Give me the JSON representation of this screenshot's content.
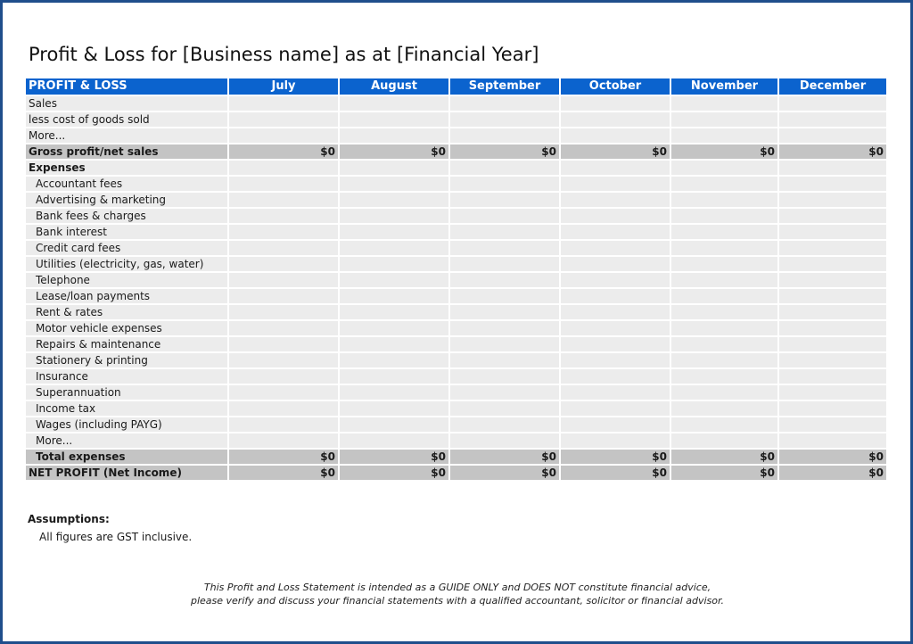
{
  "title": "Profit & Loss for [Business name] as at [Financial Year]",
  "table": {
    "header_label": "PROFIT & LOSS",
    "months": [
      "July",
      "August",
      "September",
      "October",
      "November",
      "December"
    ],
    "income_rows": [
      "Sales",
      "less cost of goods sold",
      "More..."
    ],
    "gross_profit": {
      "label": "Gross profit/net sales",
      "values": [
        "$0",
        "$0",
        "$0",
        "$0",
        "$0",
        "$0"
      ]
    },
    "expenses_label": "Expenses",
    "expense_rows": [
      "Accountant fees",
      "Advertising & marketing",
      "Bank fees & charges",
      "Bank interest",
      "Credit card fees",
      "Utilities (electricity, gas, water)",
      "Telephone",
      "Lease/loan payments",
      "Rent & rates",
      "Motor vehicle expenses",
      "Repairs & maintenance",
      "Stationery & printing",
      "Insurance",
      "Superannuation",
      "Income tax",
      "Wages (including PAYG)",
      "More..."
    ],
    "total_expenses": {
      "label": "Total expenses",
      "values": [
        "$0",
        "$0",
        "$0",
        "$0",
        "$0",
        "$0"
      ]
    },
    "net_profit": {
      "label": "NET PROFIT (Net Income)",
      "values": [
        "$0",
        "$0",
        "$0",
        "$0",
        "$0",
        "$0"
      ]
    }
  },
  "assumptions": {
    "heading": "Assumptions:",
    "text": "All figures are GST inclusive."
  },
  "disclaimer": {
    "line1": "This Profit and Loss Statement is intended as a GUIDE ONLY and DOES NOT constitute financial advice,",
    "line2": "please verify and discuss your financial statements with a qualified accountant, solicitor or financial advisor."
  },
  "colors": {
    "header_blue": "#0b63ce",
    "frame_border": "#1f4e8c",
    "cell_gray": "#ececec",
    "total_gray": "#c4c4c4"
  }
}
